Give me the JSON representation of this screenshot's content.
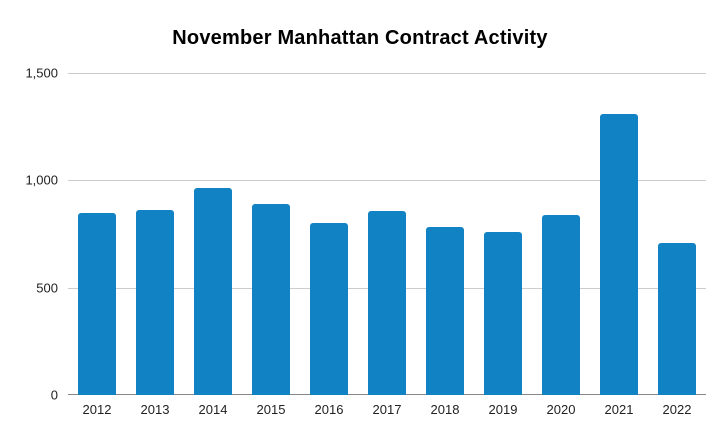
{
  "chart_data": {
    "type": "bar",
    "title": "November Manhattan Contract Activity",
    "categories": [
      "2012",
      "2013",
      "2014",
      "2015",
      "2016",
      "2017",
      "2018",
      "2019",
      "2020",
      "2021",
      "2022"
    ],
    "values": [
      850,
      860,
      965,
      890,
      800,
      855,
      785,
      760,
      840,
      1310,
      710
    ],
    "xlabel": "",
    "ylabel": "",
    "ylim": [
      0,
      1500
    ],
    "yticks": [
      0,
      500,
      1000,
      1500
    ],
    "ytick_labels": [
      "0",
      "500",
      "1,000",
      "1,500"
    ],
    "bar_color": "#1182c4",
    "background_color": "#ffffff",
    "grid": true,
    "legend": "none"
  }
}
